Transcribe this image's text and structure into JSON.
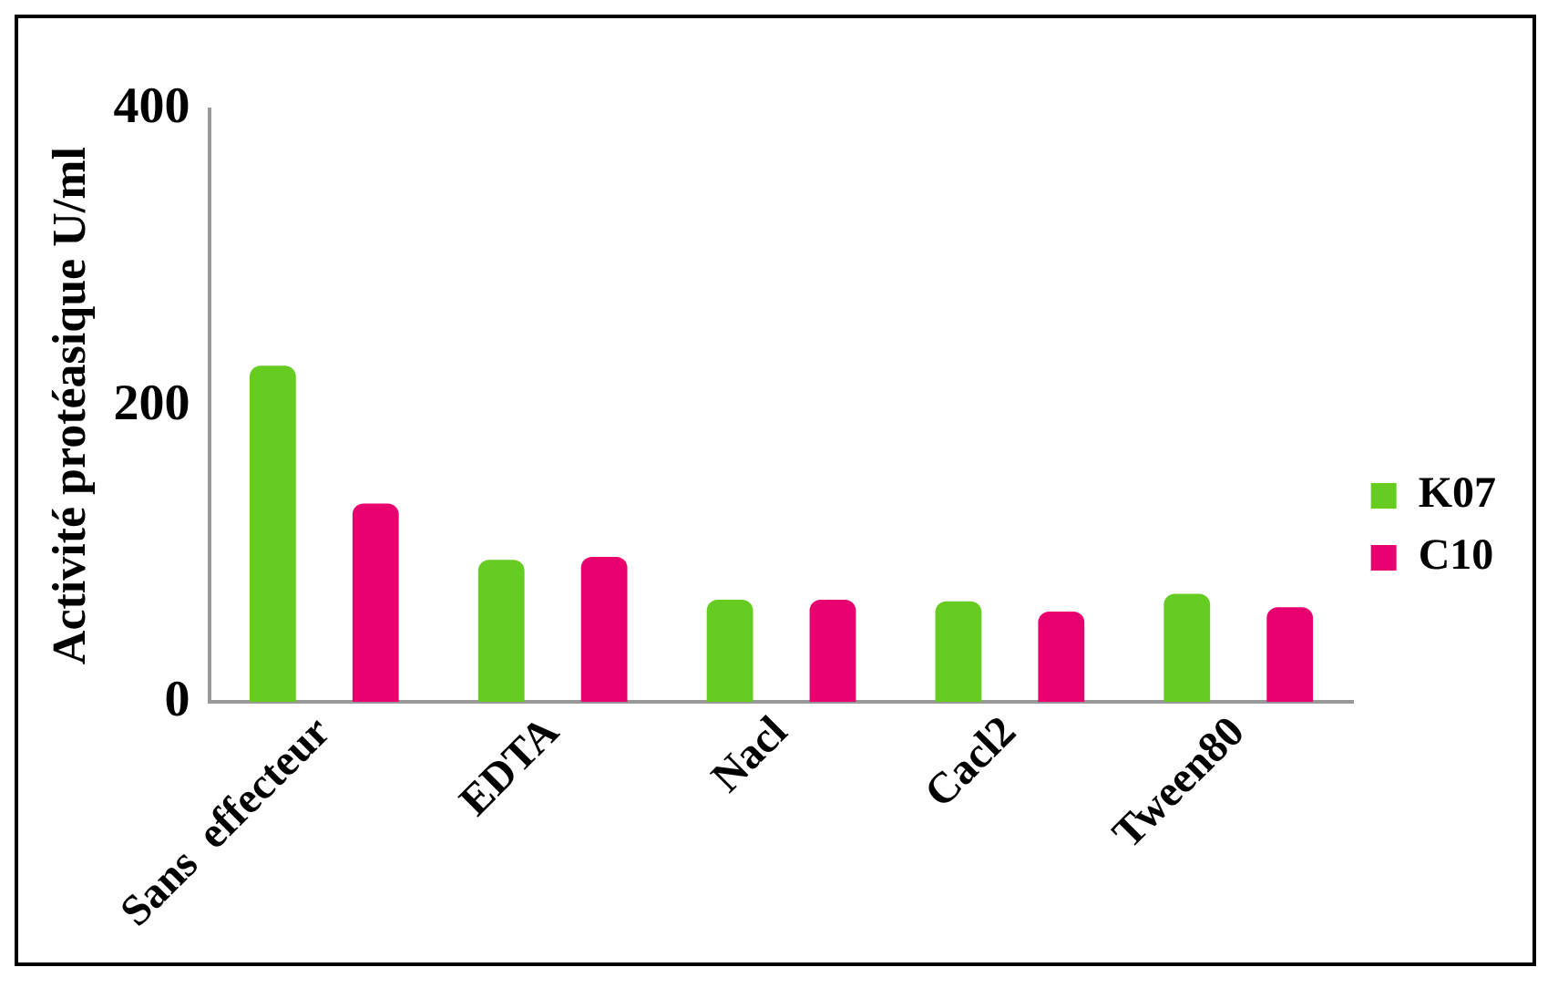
{
  "chart_data": {
    "type": "bar",
    "ylabel": "Activité protéasique U/ml",
    "categories": [
      "Sans  effecteur",
      "EDTA",
      "Nacl",
      "Cacl2",
      "Tween80"
    ],
    "series": [
      {
        "name": "K07",
        "color": "#66cc22",
        "values": [
          227,
          96,
          69,
          68,
          73
        ]
      },
      {
        "name": "C10",
        "color": "#e8006e",
        "values": [
          134,
          98,
          69,
          61,
          64
        ]
      }
    ],
    "ylim": [
      0,
      400
    ],
    "yticks": [
      0,
      200,
      400
    ],
    "grid": false,
    "legend": "right"
  }
}
